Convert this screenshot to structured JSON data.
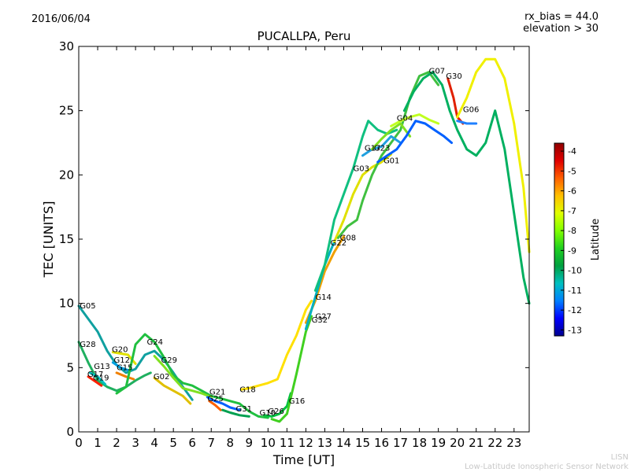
{
  "header": {
    "date": "2016/06/04",
    "rx_bias": "rx_bias = 44.0",
    "elevation": "elevation > 30"
  },
  "footer": {
    "line1": "LISN",
    "line2": "Low-Latitude Ionospheric Sensor Network"
  },
  "chart_data": {
    "type": "line",
    "title": "PUCALLPA, Peru",
    "xlabel": "Time [UT]",
    "ylabel": "TEC [UNITS]",
    "xlim": [
      0,
      23.8
    ],
    "ylim": [
      0,
      30
    ],
    "xticks": [
      "0",
      "1",
      "2",
      "3",
      "4",
      "5",
      "6",
      "7",
      "8",
      "9",
      "10",
      "11",
      "12",
      "13",
      "14",
      "15",
      "16",
      "17",
      "18",
      "19",
      "20",
      "21",
      "22",
      "23"
    ],
    "yticks": [
      "0",
      "5",
      "10",
      "15",
      "20",
      "25",
      "30"
    ],
    "grid": false,
    "colorbar": {
      "label": "Latitude",
      "ticks": [
        "-4",
        "-5",
        "-6",
        "-7",
        "-8",
        "-9",
        "-10",
        "-11",
        "-12",
        "-13"
      ],
      "range": [
        -13.3,
        -3.6
      ],
      "colors": [
        "#00008f",
        "#0000ff",
        "#0080ff",
        "#00c0c0",
        "#00a040",
        "#20d020",
        "#80ff00",
        "#e0ff00",
        "#ffc000",
        "#ff6000",
        "#e00000",
        "#900000"
      ]
    },
    "series": [
      {
        "name": "G05",
        "color": "#10a0a0",
        "points": [
          [
            0,
            9.8
          ],
          [
            0.5,
            8.8
          ],
          [
            1,
            7.8
          ],
          [
            1.5,
            6.3
          ],
          [
            2,
            5.2
          ],
          [
            2.5,
            4.6
          ],
          [
            3,
            4.9
          ],
          [
            3.5,
            6.0
          ],
          [
            4,
            6.3
          ],
          [
            4.5,
            5.6
          ],
          [
            5,
            4.6
          ],
          [
            5.5,
            3.5
          ],
          [
            6,
            2.5
          ]
        ]
      },
      {
        "name": "G28",
        "color": "#20b060",
        "points": [
          [
            0,
            7.0
          ],
          [
            0.5,
            5.4
          ],
          [
            1,
            4.0
          ],
          [
            1.5,
            3.5
          ],
          [
            2,
            3.2
          ],
          [
            2.5,
            3.5
          ],
          [
            3,
            4.0
          ],
          [
            3.5,
            4.4
          ],
          [
            3.8,
            4.6
          ]
        ]
      },
      {
        "name": "G20",
        "color": "#e0e000",
        "points": [
          [
            1.8,
            6.2
          ],
          [
            2.2,
            6.1
          ],
          [
            2.6,
            6.0
          ],
          [
            3,
            5.3
          ]
        ]
      },
      {
        "name": "G12",
        "color": "#00a0e0",
        "points": [
          [
            1.8,
            5.4
          ],
          [
            2.2,
            5.0
          ],
          [
            2.6,
            4.8
          ]
        ]
      },
      {
        "name": "G15",
        "color": "#f08000",
        "points": [
          [
            2,
            4.6
          ],
          [
            2.5,
            4.3
          ],
          [
            2.9,
            4.1
          ]
        ]
      },
      {
        "name": "G13",
        "color": "#00c0c0",
        "points": [
          [
            0.6,
            4.6
          ],
          [
            1,
            4.3
          ],
          [
            1.4,
            3.7
          ]
        ]
      },
      {
        "name": "G19",
        "color": "#ff2000",
        "points": [
          [
            0.5,
            4.3
          ],
          [
            0.9,
            3.9
          ],
          [
            1.2,
            3.6
          ]
        ]
      },
      {
        "name": "G24",
        "color": "#20c040",
        "points": [
          [
            2,
            3.0
          ],
          [
            2.5,
            3.5
          ],
          [
            3,
            6.8
          ],
          [
            3.5,
            7.6
          ],
          [
            4,
            7.0
          ],
          [
            4.5,
            5.8
          ],
          [
            5,
            4.4
          ],
          [
            5.5,
            3.8
          ],
          [
            6,
            3.6
          ],
          [
            6.5,
            3.2
          ],
          [
            7,
            2.8
          ],
          [
            7.5,
            2.6
          ],
          [
            8,
            2.4
          ],
          [
            8.5,
            2.2
          ],
          [
            9,
            1.6
          ],
          [
            9.5,
            1.2
          ],
          [
            10,
            1.1
          ]
        ]
      },
      {
        "name": "G29",
        "color": "#80e020",
        "points": [
          [
            4,
            5.9
          ],
          [
            4.5,
            5.1
          ],
          [
            5,
            4.2
          ],
          [
            5.5,
            3.4
          ],
          [
            6,
            3.2
          ],
          [
            6.5,
            3.0
          ],
          [
            7,
            2.7
          ]
        ]
      },
      {
        "name": "G02",
        "color": "#e0c000",
        "points": [
          [
            4,
            4.2
          ],
          [
            4.5,
            3.6
          ],
          [
            5,
            3.2
          ],
          [
            5.5,
            2.8
          ],
          [
            5.9,
            2.2
          ]
        ]
      },
      {
        "name": "G21",
        "color": "#0060ff",
        "points": [
          [
            6.8,
            2.7
          ],
          [
            7.2,
            2.4
          ],
          [
            7.6,
            2.2
          ],
          [
            8,
            1.9
          ],
          [
            8.5,
            1.7
          ]
        ]
      },
      {
        "name": "G25",
        "color": "#ff6000",
        "points": [
          [
            6.9,
            2.4
          ],
          [
            7.2,
            2.1
          ],
          [
            7.5,
            1.7
          ]
        ]
      },
      {
        "name": "G31",
        "color": "#00a050",
        "points": [
          [
            7.6,
            1.7
          ],
          [
            8,
            1.5
          ],
          [
            8.5,
            1.3
          ],
          [
            9,
            1.2
          ]
        ]
      },
      {
        "name": "G18",
        "color": "#ffe000",
        "points": [
          [
            8.6,
            3.3
          ],
          [
            9,
            3.4
          ],
          [
            9.5,
            3.6
          ],
          [
            10,
            3.8
          ],
          [
            10.5,
            4.1
          ],
          [
            11,
            6.0
          ],
          [
            11.5,
            7.5
          ],
          [
            12,
            9.5
          ],
          [
            12.3,
            10.2
          ]
        ]
      },
      {
        "name": "G16",
        "color": "#00c040",
        "points": [
          [
            9.8,
            1.3
          ],
          [
            10.2,
            1.2
          ],
          [
            10.6,
            1.4
          ],
          [
            11,
            2.0
          ],
          [
            11.2,
            3.0
          ]
        ]
      },
      {
        "name": "G26",
        "color": "#40d020",
        "points": [
          [
            10.2,
            1.0
          ],
          [
            10.6,
            0.8
          ],
          [
            11,
            1.4
          ],
          [
            11.5,
            4.5
          ],
          [
            12,
            7.8
          ],
          [
            12.3,
            9.0
          ]
        ]
      },
      {
        "name": "G14",
        "color": "#f0a000",
        "points": [
          [
            12,
            8.5
          ],
          [
            12.5,
            10.2
          ],
          [
            13,
            12.5
          ],
          [
            13.5,
            14.0
          ],
          [
            14,
            15.2
          ]
        ]
      },
      {
        "name": "G27",
        "color": "#00b0c0",
        "points": [
          [
            12,
            8.0
          ],
          [
            12.5,
            10.5
          ],
          [
            13,
            13.0
          ],
          [
            13.5,
            14.8
          ]
        ]
      },
      {
        "name": "G22",
        "color": "#e0e000",
        "points": [
          [
            13.5,
            14.8
          ],
          [
            14,
            16.5
          ],
          [
            14.5,
            18.5
          ],
          [
            15,
            20.0
          ],
          [
            15.5,
            20.6
          ],
          [
            16,
            21.0
          ],
          [
            16.5,
            21.6
          ]
        ]
      },
      {
        "name": "G08",
        "color": "#40c040",
        "points": [
          [
            13.7,
            15.1
          ],
          [
            14.2,
            16.0
          ],
          [
            14.7,
            16.5
          ],
          [
            15,
            18.0
          ],
          [
            15.5,
            20.0
          ],
          [
            16,
            21.5
          ],
          [
            16.5,
            22.5
          ],
          [
            17,
            23.5
          ],
          [
            17.5,
            26.0
          ],
          [
            18,
            27.7
          ],
          [
            18.5,
            28.0
          ],
          [
            19,
            27.0
          ]
        ]
      },
      {
        "name": "G03",
        "color": "#10c080",
        "points": [
          [
            12.5,
            11.0
          ],
          [
            13,
            13.0
          ],
          [
            13.5,
            16.5
          ],
          [
            14,
            18.5
          ],
          [
            14.5,
            20.5
          ],
          [
            15,
            23.0
          ],
          [
            15.3,
            24.2
          ],
          [
            15.8,
            23.5
          ],
          [
            16.3,
            23.2
          ],
          [
            16.8,
            23.5
          ]
        ]
      },
      {
        "name": "G17",
        "color": "#20a0e0",
        "points": [
          [
            15,
            21.5
          ],
          [
            15.5,
            22.0
          ],
          [
            16,
            22.2
          ],
          [
            16.5,
            23.0
          ],
          [
            17,
            22.5
          ]
        ]
      },
      {
        "name": "G23",
        "color": "#80e020",
        "points": [
          [
            15.5,
            22.0
          ],
          [
            16,
            22.8
          ],
          [
            16.5,
            23.5
          ],
          [
            17,
            24.0
          ],
          [
            17.5,
            23.0
          ]
        ]
      },
      {
        "name": "G01",
        "color": "#0060ff",
        "points": [
          [
            15.8,
            21.0
          ],
          [
            16.3,
            21.5
          ],
          [
            16.8,
            22.0
          ],
          [
            17.3,
            23.0
          ],
          [
            17.8,
            24.2
          ],
          [
            18.3,
            24.0
          ],
          [
            18.8,
            23.5
          ],
          [
            19.3,
            23.0
          ],
          [
            19.7,
            22.5
          ]
        ]
      },
      {
        "name": "G04",
        "color": "#c0ff20",
        "points": [
          [
            16.5,
            23.8
          ],
          [
            17,
            24.2
          ],
          [
            17.5,
            24.5
          ],
          [
            18,
            24.7
          ],
          [
            18.5,
            24.3
          ],
          [
            19,
            24.0
          ]
        ]
      },
      {
        "name": "G07",
        "color": "#00b060",
        "points": [
          [
            17.2,
            25.0
          ],
          [
            17.7,
            26.5
          ],
          [
            18.2,
            27.5
          ],
          [
            18.7,
            28.0
          ],
          [
            19.2,
            27.0
          ],
          [
            19.6,
            25.0
          ],
          [
            20,
            23.5
          ],
          [
            20.5,
            22.0
          ],
          [
            21,
            21.5
          ],
          [
            21.5,
            22.5
          ],
          [
            22,
            25.0
          ],
          [
            22.5,
            22.0
          ],
          [
            23,
            17.0
          ],
          [
            23.5,
            12.0
          ],
          [
            23.8,
            10.0
          ]
        ]
      },
      {
        "name": "G30",
        "color": "#e02000",
        "points": [
          [
            19.5,
            27.5
          ],
          [
            19.8,
            26.0
          ],
          [
            20,
            24.5
          ],
          [
            20.3,
            24.0
          ]
        ]
      },
      {
        "name": "G06",
        "color": "#2080ff",
        "points": [
          [
            20,
            24.2
          ],
          [
            20.5,
            24.0
          ],
          [
            21,
            24.0
          ]
        ]
      },
      {
        "name": "G10",
        "color": "#f0f000",
        "points": [
          [
            20,
            24.5
          ],
          [
            20.5,
            26.0
          ],
          [
            21,
            28.0
          ],
          [
            21.5,
            29.0
          ],
          [
            22,
            29.0
          ],
          [
            22.5,
            27.5
          ],
          [
            23,
            24.0
          ],
          [
            23.5,
            19.0
          ],
          [
            23.8,
            14.0
          ]
        ]
      }
    ],
    "labels": [
      {
        "text": "G05",
        "x": 0.05,
        "y": 9.6
      },
      {
        "text": "G28",
        "x": 0.05,
        "y": 6.6
      },
      {
        "text": "G20",
        "x": 1.75,
        "y": 6.2
      },
      {
        "text": "G12",
        "x": 1.85,
        "y": 5.4
      },
      {
        "text": "G15",
        "x": 2.0,
        "y": 4.8
      },
      {
        "text": "G13",
        "x": 0.8,
        "y": 4.9
      },
      {
        "text": "G19",
        "x": 0.75,
        "y": 4.0
      },
      {
        "text": "G17",
        "x": 0.45,
        "y": 4.3
      },
      {
        "text": "G24",
        "x": 3.6,
        "y": 6.8
      },
      {
        "text": "G29",
        "x": 4.35,
        "y": 5.4
      },
      {
        "text": "G02",
        "x": 3.95,
        "y": 4.1
      },
      {
        "text": "G21",
        "x": 6.9,
        "y": 2.9
      },
      {
        "text": "G25",
        "x": 6.8,
        "y": 2.4
      },
      {
        "text": "G18",
        "x": 8.5,
        "y": 3.1
      },
      {
        "text": "G31",
        "x": 8.3,
        "y": 1.6
      },
      {
        "text": "G10",
        "x": 9.55,
        "y": 1.3
      },
      {
        "text": "G26",
        "x": 10.0,
        "y": 1.4
      },
      {
        "text": "G16",
        "x": 11.1,
        "y": 2.2
      },
      {
        "text": "G14",
        "x": 12.5,
        "y": 10.3
      },
      {
        "text": "G27",
        "x": 12.5,
        "y": 8.8
      },
      {
        "text": "G32",
        "x": 12.3,
        "y": 8.5
      },
      {
        "text": "G22",
        "x": 13.3,
        "y": 14.5
      },
      {
        "text": "G08",
        "x": 13.8,
        "y": 14.9
      },
      {
        "text": "G03",
        "x": 14.5,
        "y": 20.3
      },
      {
        "text": "G17",
        "x": 15.1,
        "y": 21.9
      },
      {
        "text": "G23",
        "x": 15.6,
        "y": 21.9
      },
      {
        "text": "G01",
        "x": 16.1,
        "y": 20.9
      },
      {
        "text": "G04",
        "x": 16.8,
        "y": 24.2
      },
      {
        "text": "G07",
        "x": 18.5,
        "y": 27.9
      },
      {
        "text": "G30",
        "x": 19.4,
        "y": 27.5
      },
      {
        "text": "G06",
        "x": 20.3,
        "y": 24.9
      }
    ]
  }
}
